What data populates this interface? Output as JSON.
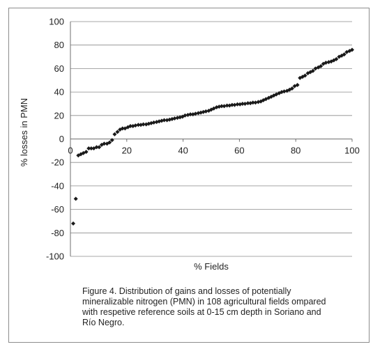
{
  "chart_data": {
    "type": "scatter",
    "title": "",
    "xlabel": "% Fields",
    "ylabel": "% losses in PMN",
    "xlim": [
      0,
      100
    ],
    "ylim": [
      -100,
      100
    ],
    "x_ticks": [
      "0",
      "20",
      "40",
      "60",
      "80",
      "100"
    ],
    "y_ticks": [
      "100",
      "80",
      "60",
      "40",
      "20",
      "0",
      "-20",
      "-40",
      "-60",
      "-80",
      "-100"
    ],
    "grid": "horizontal",
    "legend": "none",
    "marker": "diamond",
    "marker_color": "#1a1a1a",
    "series": [
      {
        "points": [
          [
            1,
            -72
          ],
          [
            1.9,
            -51
          ],
          [
            2.8,
            -14
          ],
          [
            3.7,
            -13
          ],
          [
            4.6,
            -12
          ],
          [
            5.6,
            -11
          ],
          [
            6.5,
            -8
          ],
          [
            7.4,
            -8
          ],
          [
            8.3,
            -8
          ],
          [
            9.3,
            -7
          ],
          [
            10.2,
            -7
          ],
          [
            11.1,
            -5
          ],
          [
            12,
            -4
          ],
          [
            13,
            -4
          ],
          [
            13.9,
            -3
          ],
          [
            14.8,
            -1
          ],
          [
            15.7,
            4
          ],
          [
            16.7,
            6
          ],
          [
            17.6,
            8
          ],
          [
            18.5,
            9
          ],
          [
            19.4,
            9
          ],
          [
            20.4,
            10
          ],
          [
            21.3,
            11
          ],
          [
            22.2,
            11
          ],
          [
            23.1,
            11.5
          ],
          [
            24.1,
            12
          ],
          [
            25,
            12
          ],
          [
            25.9,
            12.5
          ],
          [
            26.9,
            12.5
          ],
          [
            27.8,
            13
          ],
          [
            28.7,
            13.5
          ],
          [
            29.6,
            14
          ],
          [
            30.6,
            14.5
          ],
          [
            31.5,
            15
          ],
          [
            32.4,
            15.5
          ],
          [
            33.3,
            16
          ],
          [
            34.3,
            16
          ],
          [
            35.2,
            16.5
          ],
          [
            36.1,
            17
          ],
          [
            37,
            17.5
          ],
          [
            38,
            18
          ],
          [
            38.9,
            18.5
          ],
          [
            39.8,
            19
          ],
          [
            40.7,
            20
          ],
          [
            41.7,
            20.5
          ],
          [
            42.6,
            21
          ],
          [
            43.5,
            21
          ],
          [
            44.4,
            21.5
          ],
          [
            45.4,
            22
          ],
          [
            46.3,
            22.5
          ],
          [
            47.2,
            23
          ],
          [
            48.1,
            23.5
          ],
          [
            49.1,
            24
          ],
          [
            50,
            25
          ],
          [
            50.9,
            26
          ],
          [
            51.9,
            27
          ],
          [
            52.8,
            27.5
          ],
          [
            53.7,
            28
          ],
          [
            54.6,
            28
          ],
          [
            55.6,
            28.5
          ],
          [
            56.5,
            28.5
          ],
          [
            57.4,
            29
          ],
          [
            58.3,
            29
          ],
          [
            59.3,
            29.5
          ],
          [
            60.2,
            29.5
          ],
          [
            61.1,
            30
          ],
          [
            62,
            30
          ],
          [
            63,
            30.5
          ],
          [
            63.9,
            30.5
          ],
          [
            64.8,
            31
          ],
          [
            65.7,
            31
          ],
          [
            66.7,
            31.5
          ],
          [
            67.6,
            32
          ],
          [
            68.5,
            33
          ],
          [
            69.4,
            34
          ],
          [
            70.4,
            35
          ],
          [
            71.3,
            36
          ],
          [
            72.2,
            37
          ],
          [
            73.1,
            38
          ],
          [
            74.1,
            39
          ],
          [
            75,
            40
          ],
          [
            75.9,
            40.5
          ],
          [
            76.9,
            41
          ],
          [
            77.8,
            42
          ],
          [
            78.7,
            43
          ],
          [
            79.6,
            45
          ],
          [
            80.6,
            46
          ],
          [
            81.5,
            52
          ],
          [
            82.4,
            53
          ],
          [
            83.3,
            54
          ],
          [
            84.3,
            56
          ],
          [
            85.2,
            57
          ],
          [
            86.1,
            58
          ],
          [
            87,
            60
          ],
          [
            88,
            61
          ],
          [
            88.9,
            62
          ],
          [
            89.8,
            64
          ],
          [
            90.7,
            65
          ],
          [
            91.7,
            65.5
          ],
          [
            92.6,
            66
          ],
          [
            93.5,
            67
          ],
          [
            94.4,
            68
          ],
          [
            95.4,
            70
          ],
          [
            96.3,
            71
          ],
          [
            97.2,
            72
          ],
          [
            98.1,
            74
          ],
          [
            99.1,
            75
          ],
          [
            100,
            76
          ]
        ]
      }
    ]
  },
  "caption": "Figure 4. Distribution of gains and losses of potentially\nmineralizable nitrogen (PMN) in 108 agricultural fields ompared\nwith respetive reference soils at 0-15 cm depth in  Soriano and\nRío Negro."
}
